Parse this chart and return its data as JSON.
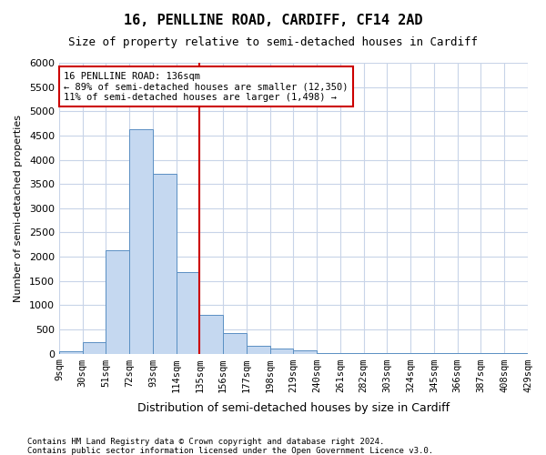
{
  "title": "16, PENLLINE ROAD, CARDIFF, CF14 2AD",
  "subtitle": "Size of property relative to semi-detached houses in Cardiff",
  "xlabel": "Distribution of semi-detached houses by size in Cardiff",
  "ylabel": "Number of semi-detached properties",
  "footnote1": "Contains HM Land Registry data © Crown copyright and database right 2024.",
  "footnote2": "Contains public sector information licensed under the Open Government Licence v3.0.",
  "annotation_title": "16 PENLLINE ROAD: 136sqm",
  "annotation_line1": "← 89% of semi-detached houses are smaller (12,350)",
  "annotation_line2": "11% of semi-detached houses are larger (1,498) →",
  "bar_color": "#c5d8f0",
  "bar_edge_color": "#5a8fc3",
  "vline_color": "#cc0000",
  "annotation_box_color": "#cc0000",
  "bin_edges": [
    9,
    30,
    51,
    72,
    93,
    114,
    135,
    156,
    177,
    198,
    219,
    240,
    261,
    282,
    303,
    324,
    345,
    366,
    387,
    408,
    429
  ],
  "bar_heights": [
    50,
    230,
    2130,
    4630,
    3700,
    1680,
    800,
    420,
    155,
    95,
    60,
    15,
    8,
    5,
    4,
    3,
    3,
    2,
    2,
    1
  ],
  "vline_x": 135,
  "ylim": [
    0,
    6000
  ],
  "yticks": [
    0,
    500,
    1000,
    1500,
    2000,
    2500,
    3000,
    3500,
    4000,
    4500,
    5000,
    5500,
    6000
  ],
  "background_color": "#ffffff",
  "grid_color": "#c8d4e8"
}
